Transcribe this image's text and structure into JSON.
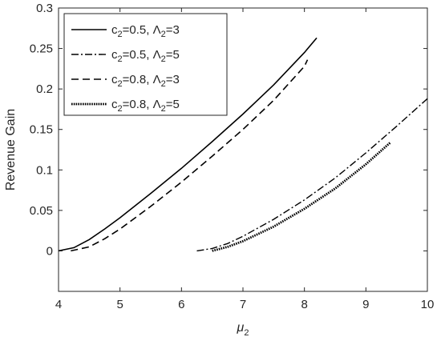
{
  "chart_data": {
    "type": "line",
    "title": "",
    "xlabel": "μ",
    "xlabel_sub": "2",
    "ylabel": "Revenue Gain",
    "xlim": [
      4,
      10
    ],
    "ylim": [
      -0.05,
      0.3
    ],
    "xticks": [
      "4",
      "5",
      "6",
      "7",
      "8",
      "9",
      "10"
    ],
    "yticks": [
      "0",
      "0.05",
      "0.1",
      "0.15",
      "0.2",
      "0.25",
      "0.3"
    ],
    "grid": false,
    "legend_position": "top-left",
    "series": [
      {
        "name": "c2=0.5, Λ2=3",
        "legend": {
          "c": "c",
          "c_sub": "2",
          "c_val": "=0.5, ",
          "l": "Λ",
          "l_sub": "2",
          "l_val": "=3"
        },
        "style": "solid",
        "x": [
          4.0,
          4.25,
          4.5,
          4.75,
          5.0,
          5.5,
          6.0,
          6.5,
          7.0,
          7.5,
          8.0,
          8.2
        ],
        "y": [
          0.0,
          0.004,
          0.014,
          0.027,
          0.041,
          0.071,
          0.102,
          0.135,
          0.169,
          0.205,
          0.245,
          0.263
        ]
      },
      {
        "name": "c2=0.5, Λ2=5",
        "legend": {
          "c": "c",
          "c_sub": "2",
          "c_val": "=0.5, ",
          "l": "Λ",
          "l_sub": "2",
          "l_val": "=5"
        },
        "style": "dashdot",
        "x": [
          6.25,
          6.5,
          6.75,
          7.0,
          7.5,
          8.0,
          8.5,
          9.0,
          9.5,
          10.0
        ],
        "y": [
          0.0,
          0.003,
          0.009,
          0.018,
          0.039,
          0.063,
          0.09,
          0.121,
          0.154,
          0.188
        ]
      },
      {
        "name": "c2=0.8, Λ2=3",
        "legend": {
          "c": "c",
          "c_sub": "2",
          "c_val": "=0.8, ",
          "l": "Λ",
          "l_sub": "2",
          "l_val": "=3"
        },
        "style": "dashed",
        "x": [
          4.2,
          4.5,
          4.75,
          5.0,
          5.5,
          6.0,
          6.5,
          7.0,
          7.5,
          8.0,
          8.05
        ],
        "y": [
          0.0,
          0.005,
          0.015,
          0.027,
          0.055,
          0.085,
          0.117,
          0.15,
          0.186,
          0.228,
          0.236
        ]
      },
      {
        "name": "c2=0.8, Λ2=5",
        "legend": {
          "c": "c",
          "c_sub": "2",
          "c_val": "=0.8, ",
          "l": "Λ",
          "l_sub": "2",
          "l_val": "=5"
        },
        "style": "dotted",
        "x": [
          6.5,
          6.75,
          7.0,
          7.5,
          8.0,
          8.5,
          9.0,
          9.4
        ],
        "y": [
          0.0,
          0.005,
          0.012,
          0.03,
          0.052,
          0.077,
          0.107,
          0.134
        ]
      }
    ]
  }
}
